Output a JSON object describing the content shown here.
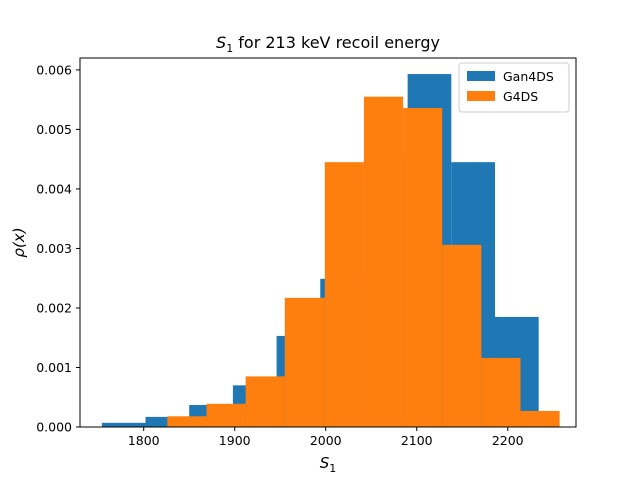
{
  "chart_data": {
    "type": "bar",
    "histogram": true,
    "title_math": "S",
    "title_sub": "1",
    "title_rest": " for 213 keV recoil energy",
    "xlabel_math": "S",
    "xlabel_sub": "1",
    "ylabel": "ρ(x)",
    "xlim": [
      1730,
      2275
    ],
    "ylim": [
      0,
      0.0062
    ],
    "xticks": [
      1800,
      1900,
      2000,
      2100,
      2200
    ],
    "yticks": [
      0.0,
      0.001,
      0.002,
      0.003,
      0.004,
      0.005,
      0.006
    ],
    "ytick_labels": [
      "0.000",
      "0.001",
      "0.002",
      "0.003",
      "0.004",
      "0.005",
      "0.006"
    ],
    "legend_position": "top-right",
    "series": [
      {
        "name": "Gan4DS",
        "color": "#1f77b4",
        "bin_edges": [
          1754,
          1802,
          1850,
          1898,
          1946,
          1994,
          2042,
          2090,
          2138,
          2186,
          2234
        ],
        "values": [
          7e-05,
          0.00017,
          0.00037,
          0.0007,
          0.00153,
          0.00249,
          0.00453,
          0.00593,
          0.00445,
          0.00185
        ]
      },
      {
        "name": "G4DS",
        "color": "#ff7f0e",
        "bin_edges": [
          1826,
          1869,
          1912,
          1955,
          1999,
          2042,
          2085,
          2128,
          2171,
          2214,
          2257
        ],
        "values": [
          0.00018,
          0.00039,
          0.00085,
          0.00217,
          0.00445,
          0.00555,
          0.00536,
          0.00306,
          0.00116,
          0.00027
        ]
      }
    ]
  }
}
